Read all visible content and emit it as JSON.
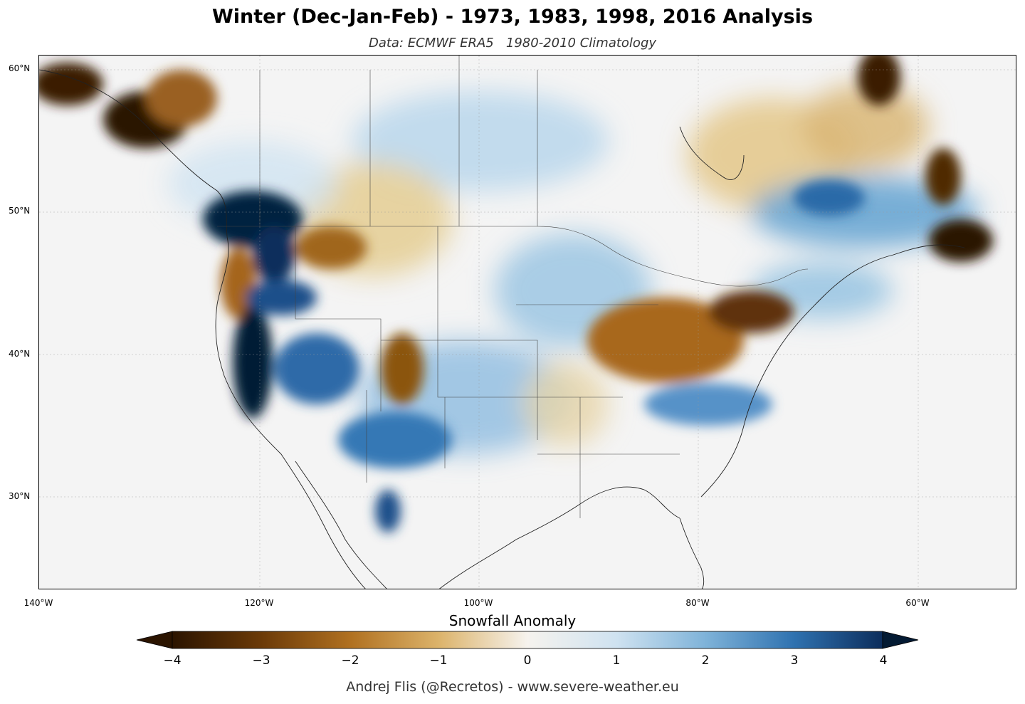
{
  "title": "Winter (Dec-Jan-Feb) - 1973, 1983, 1998, 2016 Analysis",
  "subtitle": "Data: ECMWF ERA5   1980-2010 Climatology",
  "latitude_labels": [
    "60°N",
    "50°N",
    "40°N",
    "30°N"
  ],
  "longitude_labels": [
    "140°W",
    "120°W",
    "100°W",
    "80°W",
    "60°W"
  ],
  "colorbar": {
    "title": "Snowfall Anomaly",
    "ticks": [
      "−4",
      "−3",
      "−2",
      "−1",
      "0",
      "1",
      "2",
      "3",
      "4"
    ],
    "range": [
      -4,
      4
    ],
    "colors": [
      "#2b1400",
      "#6b3a08",
      "#b07020",
      "#dcb36a",
      "#f6eddc",
      "#ecf2f8",
      "#a9cde6",
      "#3f86c0",
      "#0c2d5c",
      "#031a33"
    ]
  },
  "credit": "Andrej Flis (@Recretos) - www.severe-weather.eu",
  "map": {
    "region": "North America",
    "variable": "Snowfall Anomaly",
    "anomaly_areas": [
      {
        "area": "Alaska panhandle / British Columbia coast",
        "value": -4
      },
      {
        "area": "Pacific Northwest (WA/OR Cascades)",
        "value": 4
      },
      {
        "area": "Sierra Nevada",
        "value": 4
      },
      {
        "area": "Great Basin / Utah",
        "value": 3
      },
      {
        "area": "Colorado Rockies",
        "value": -3
      },
      {
        "area": "Arizona / New Mexico",
        "value": 2.5
      },
      {
        "area": "Montana / Idaho",
        "value": -2
      },
      {
        "area": "Central Plains",
        "value": 1.5
      },
      {
        "area": "Ohio Valley / Great Lakes",
        "value": -3
      },
      {
        "area": "Pennsylvania / New York",
        "value": -3.5
      },
      {
        "area": "Tennessee / Carolinas",
        "value": 2
      },
      {
        "area": "Quebec",
        "value": 2
      },
      {
        "area": "Labrador coast",
        "value": -3
      },
      {
        "area": "Newfoundland",
        "value": -4
      },
      {
        "area": "Northern Mexico (Sierra Madre)",
        "value": 3
      }
    ]
  }
}
